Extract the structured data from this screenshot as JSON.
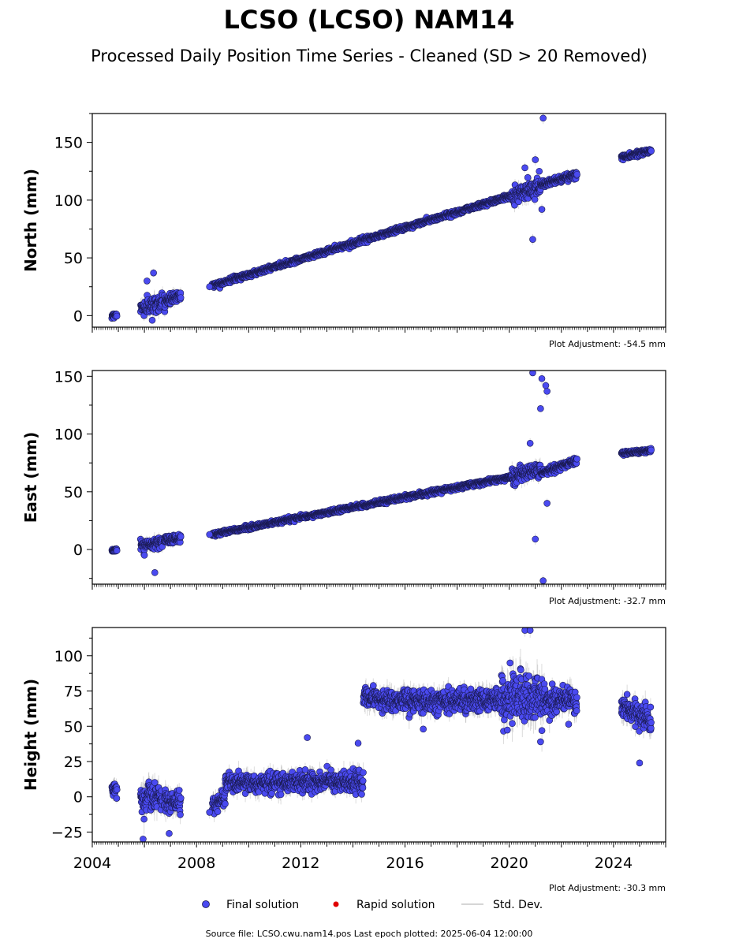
{
  "title": "LCSO (LCSO) NAM14",
  "subtitle": "Processed Daily Position Time Series - Cleaned (SD > 20 Removed)",
  "source_line": "Source file: LCSO.cwu.nam14.pos  Last epoch plotted: 2025-06-04 12:00:00",
  "legend": {
    "final": "Final solution",
    "rapid": "Rapid solution",
    "std": "Std. Dev."
  },
  "colors": {
    "final": "#4a4af0",
    "final_edge": "#1a1a50",
    "rapid": "#e00000",
    "std": "#c8c8c8"
  },
  "chart_data": [
    {
      "type": "scatter",
      "ylabel": "North (mm)",
      "adjustment": "Plot Adjustment: -54.5 mm",
      "xlim": [
        2004.0,
        2026.0
      ],
      "ylim": [
        -10,
        175
      ],
      "yticks": [
        0,
        50,
        100,
        150
      ],
      "segments": [
        {
          "x0": 2004.75,
          "x1": 2004.95,
          "y0": 0,
          "y1": 1,
          "noise": 1.5
        },
        {
          "x0": 2005.85,
          "x1": 2006.7,
          "y0": 6,
          "y1": 12,
          "noise": 6
        },
        {
          "x0": 2006.75,
          "x1": 2007.4,
          "y0": 12,
          "y1": 18,
          "noise": 4
        },
        {
          "x0": 2008.6,
          "x1": 2020.1,
          "y0": 26,
          "y1": 104,
          "noise": 1.8
        },
        {
          "x0": 2020.1,
          "x1": 2021.2,
          "y0": 104,
          "y1": 113,
          "noise": 6
        },
        {
          "x0": 2021.2,
          "x1": 2022.6,
          "y0": 113,
          "y1": 122,
          "noise": 2.5
        },
        {
          "x0": 2024.3,
          "x1": 2025.45,
          "y0": 137,
          "y1": 143,
          "noise": 1.8
        }
      ],
      "outliers": [
        {
          "x": 2006.35,
          "y": 37
        },
        {
          "x": 2006.1,
          "y": 30
        },
        {
          "x": 2006.3,
          "y": -4
        },
        {
          "x": 2008.5,
          "y": 25
        },
        {
          "x": 2020.9,
          "y": 66
        },
        {
          "x": 2021.0,
          "y": 135
        },
        {
          "x": 2021.3,
          "y": 171
        },
        {
          "x": 2021.25,
          "y": 92
        },
        {
          "x": 2021.15,
          "y": 125
        },
        {
          "x": 2020.6,
          "y": 128
        }
      ]
    },
    {
      "type": "scatter",
      "ylabel": "East (mm)",
      "adjustment": "Plot Adjustment: -32.7 mm",
      "xlim": [
        2004.0,
        2026.0
      ],
      "ylim": [
        -30,
        155
      ],
      "yticks": [
        0,
        50,
        100,
        150
      ],
      "segments": [
        {
          "x0": 2004.75,
          "x1": 2004.95,
          "y0": -1,
          "y1": 0,
          "noise": 1.2
        },
        {
          "x0": 2005.85,
          "x1": 2006.7,
          "y0": 3,
          "y1": 6,
          "noise": 4.5
        },
        {
          "x0": 2006.75,
          "x1": 2007.4,
          "y0": 8,
          "y1": 10,
          "noise": 3
        },
        {
          "x0": 2008.6,
          "x1": 2020.1,
          "y0": 13,
          "y1": 63,
          "noise": 1.6
        },
        {
          "x0": 2020.1,
          "x1": 2021.2,
          "y0": 63,
          "y1": 70,
          "noise": 5
        },
        {
          "x0": 2021.2,
          "x1": 2022.6,
          "y0": 66,
          "y1": 77,
          "noise": 2.5
        },
        {
          "x0": 2024.3,
          "x1": 2025.45,
          "y0": 83,
          "y1": 86,
          "noise": 1.5
        }
      ],
      "outliers": [
        {
          "x": 2006.4,
          "y": -20
        },
        {
          "x": 2006.0,
          "y": -5
        },
        {
          "x": 2008.5,
          "y": 13
        },
        {
          "x": 2020.9,
          "y": 153
        },
        {
          "x": 2021.25,
          "y": 148
        },
        {
          "x": 2021.4,
          "y": 142
        },
        {
          "x": 2021.45,
          "y": 137
        },
        {
          "x": 2021.2,
          "y": 122
        },
        {
          "x": 2021.45,
          "y": 40
        },
        {
          "x": 2021.0,
          "y": 9
        },
        {
          "x": 2021.3,
          "y": -27
        },
        {
          "x": 2020.8,
          "y": 92
        }
      ]
    },
    {
      "type": "scatter",
      "ylabel": "Height (mm)",
      "adjustment": "Plot Adjustment: -30.3 mm",
      "xlim": [
        2004.0,
        2026.0
      ],
      "ylim": [
        -32,
        120
      ],
      "yticks": [
        -25,
        0,
        25,
        50,
        75,
        100
      ],
      "xticks": [
        2004,
        2008,
        2012,
        2016,
        2020,
        2024
      ],
      "segments": [
        {
          "x0": 2004.75,
          "x1": 2004.95,
          "y0": 5,
          "y1": 5,
          "noise": 5
        },
        {
          "x0": 2005.85,
          "x1": 2006.7,
          "y0": 0,
          "y1": 0,
          "noise": 10
        },
        {
          "x0": 2006.75,
          "x1": 2007.4,
          "y0": -3,
          "y1": -3,
          "noise": 7
        },
        {
          "x0": 2008.6,
          "x1": 2009.1,
          "y0": -6,
          "y1": -2,
          "noise": 6
        },
        {
          "x0": 2009.1,
          "x1": 2014.4,
          "y0": 10,
          "y1": 11,
          "noise": 6
        },
        {
          "x0": 2014.4,
          "x1": 2019.7,
          "y0": 69,
          "y1": 68,
          "noise": 7
        },
        {
          "x0": 2019.7,
          "x1": 2021.3,
          "y0": 70,
          "y1": 72,
          "noise": 15
        },
        {
          "x0": 2021.3,
          "x1": 2022.6,
          "y0": 70,
          "y1": 66,
          "noise": 9
        },
        {
          "x0": 2024.3,
          "x1": 2025.45,
          "y0": 65,
          "y1": 53,
          "noise": 7
        }
      ],
      "outliers": [
        {
          "x": 2012.25,
          "y": 42
        },
        {
          "x": 2014.2,
          "y": 38
        },
        {
          "x": 2006.95,
          "y": -26
        },
        {
          "x": 2005.95,
          "y": -30
        },
        {
          "x": 2021.2,
          "y": 39
        },
        {
          "x": 2025.0,
          "y": 24
        },
        {
          "x": 2020.6,
          "y": 118
        },
        {
          "x": 2020.8,
          "y": 118
        },
        {
          "x": 2008.5,
          "y": -11
        },
        {
          "x": 2016.7,
          "y": 48
        }
      ]
    }
  ]
}
